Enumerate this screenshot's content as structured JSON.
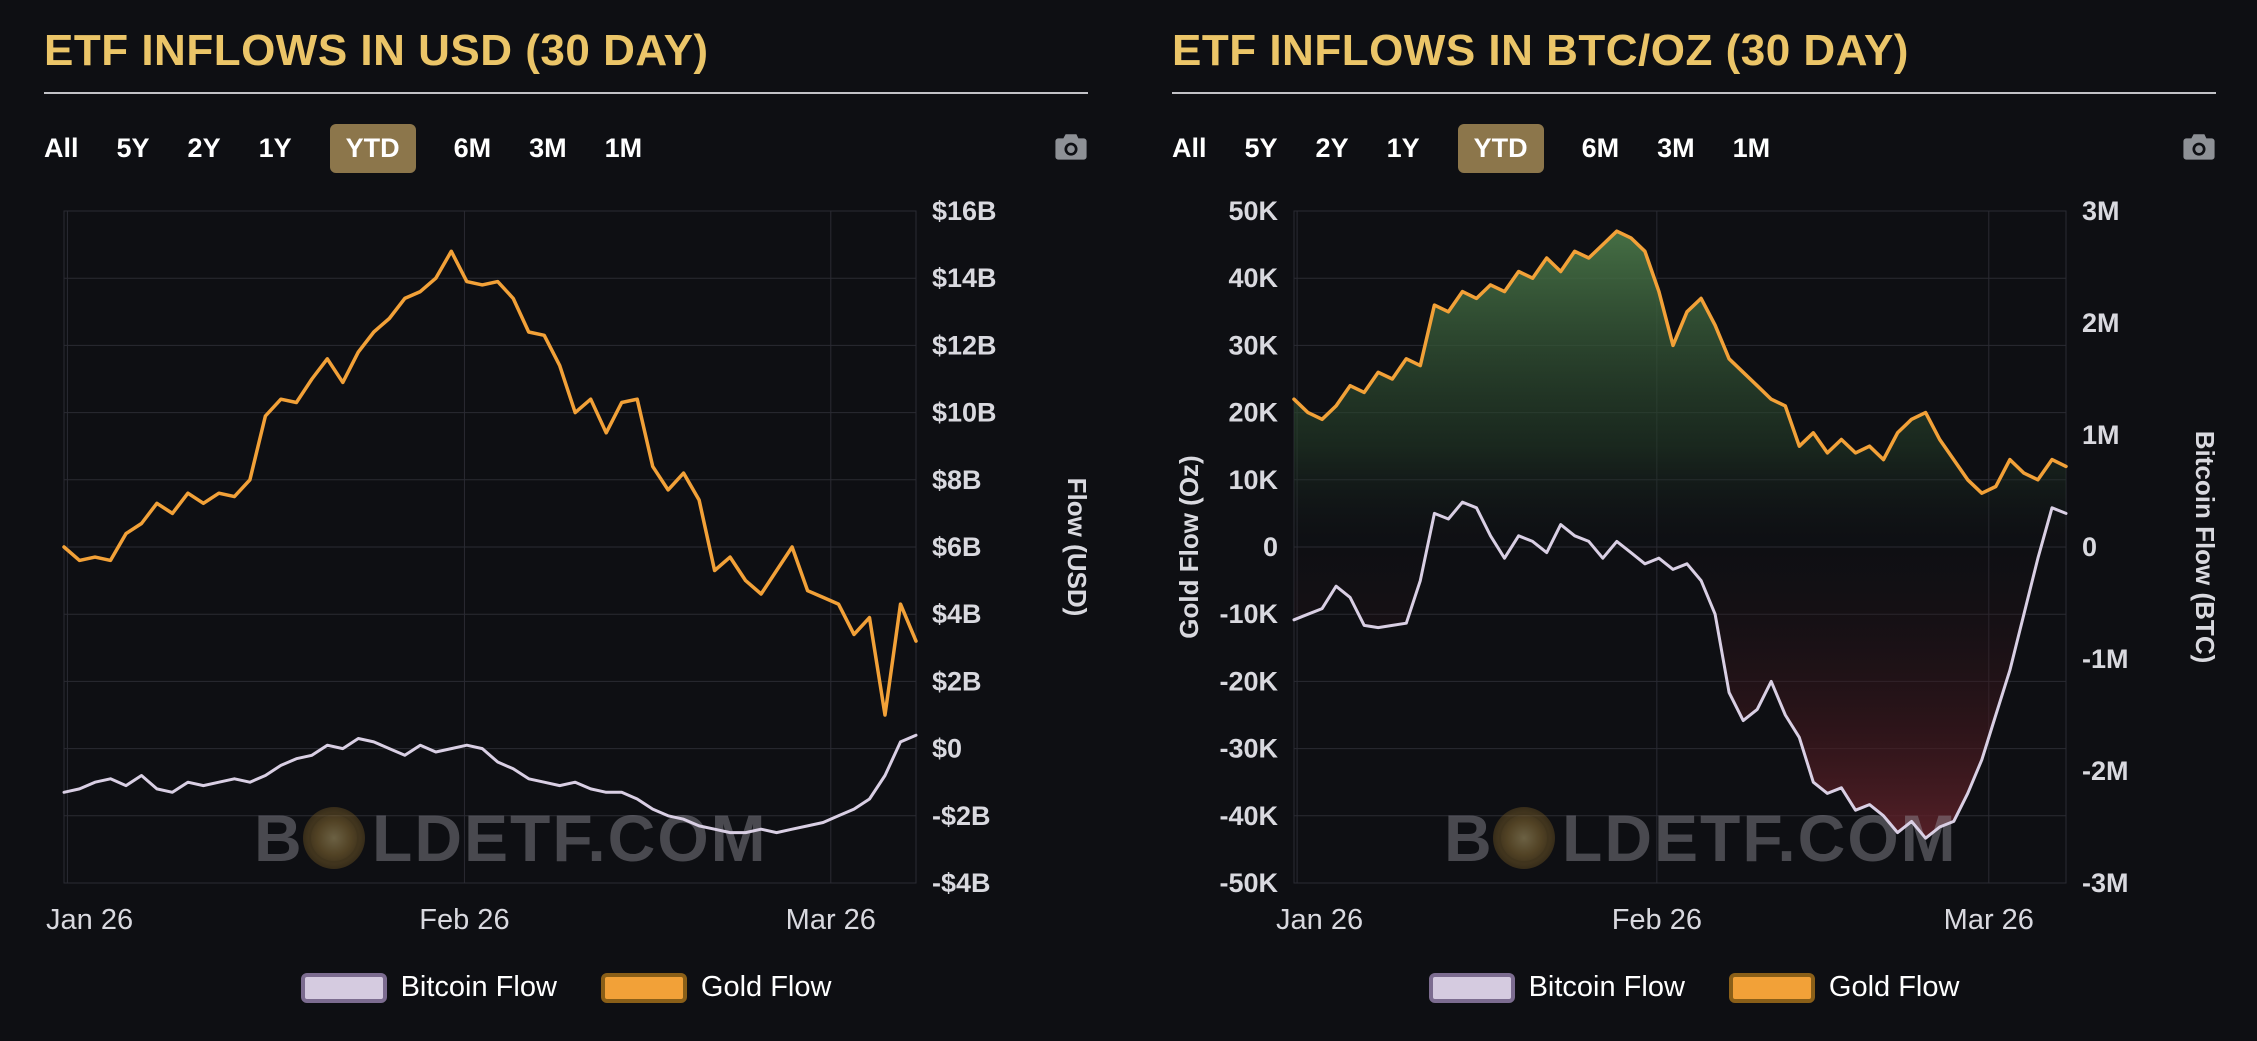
{
  "theme": {
    "bg": "#0e0f13",
    "title_color": "#ebc568",
    "grid_color": "#2a2b33",
    "axis_text": "#d9d9df",
    "selected_range_bg": "#8c764b",
    "watermark_color": "#9a9aa3",
    "green_fill": "#4e7d4c",
    "red_fill": "#6e2730",
    "gold_color": "#f2a138",
    "btc_color": "#d9cfe4"
  },
  "range_buttons": {
    "options": [
      "All",
      "5Y",
      "2Y",
      "1Y",
      "YTD",
      "6M",
      "3M",
      "1M"
    ],
    "selected": "YTD"
  },
  "watermark": {
    "text_prefix": "B",
    "text_suffix": "LDETF.COM"
  },
  "legend": [
    {
      "label": "Bitcoin Flow",
      "fill": "#d5cbe0",
      "border": "#7c6c90"
    },
    {
      "label": "Gold Flow",
      "fill": "#f2a138",
      "border": "#8a5f18"
    }
  ],
  "chart_data": [
    {
      "type": "line",
      "title": "ETF INFLOWS IN USD (30 DAY)",
      "x_ticks": [
        {
          "label": "Jan 26",
          "pos": 0.004
        },
        {
          "label": "Feb 26",
          "pos": 0.47
        },
        {
          "label": "Mar 26",
          "pos": 0.9
        }
      ],
      "right_axis": {
        "label": "Flow (USD)",
        "ylim": [
          -4,
          16
        ],
        "ticks": [
          "$16B",
          "$14B",
          "$12B",
          "$10B",
          "$8B",
          "$6B",
          "$4B",
          "$2B",
          "$0",
          "-$2B",
          "-$4B"
        ]
      },
      "series": [
        {
          "name": "Gold Flow",
          "axis": "right",
          "color": "#f2a138",
          "width": 3.5,
          "unit": "USD billions",
          "values": [
            6.0,
            5.6,
            5.7,
            5.6,
            6.4,
            6.7,
            7.3,
            7.0,
            7.6,
            7.3,
            7.6,
            7.5,
            8.0,
            9.9,
            10.4,
            10.3,
            11.0,
            11.6,
            10.9,
            11.8,
            12.4,
            12.8,
            13.4,
            13.6,
            14.0,
            14.8,
            13.9,
            13.8,
            13.9,
            13.4,
            12.4,
            12.3,
            11.4,
            10.0,
            10.4,
            9.4,
            10.3,
            10.4,
            8.4,
            7.7,
            8.2,
            7.4,
            5.3,
            5.7,
            5.0,
            4.6,
            5.3,
            6.0,
            4.7,
            4.5,
            4.3,
            3.4,
            3.9,
            1.0,
            4.3,
            3.2
          ]
        },
        {
          "name": "Bitcoin Flow",
          "axis": "right",
          "color": "#d9cfe4",
          "width": 3,
          "unit": "USD billions",
          "values": [
            -1.3,
            -1.2,
            -1.0,
            -0.9,
            -1.1,
            -0.8,
            -1.2,
            -1.3,
            -1.0,
            -1.1,
            -1.0,
            -0.9,
            -1.0,
            -0.8,
            -0.5,
            -0.3,
            -0.2,
            0.1,
            0.0,
            0.3,
            0.2,
            0.0,
            -0.2,
            0.1,
            -0.1,
            0.0,
            0.1,
            0.0,
            -0.4,
            -0.6,
            -0.9,
            -1.0,
            -1.1,
            -1.0,
            -1.2,
            -1.3,
            -1.3,
            -1.5,
            -1.8,
            -2.0,
            -2.1,
            -2.3,
            -2.4,
            -2.5,
            -2.5,
            -2.4,
            -2.5,
            -2.4,
            -2.3,
            -2.2,
            -2.0,
            -1.8,
            -1.5,
            -0.8,
            0.2,
            0.4
          ]
        }
      ]
    },
    {
      "type": "line",
      "title": "ETF INFLOWS IN BTC/OZ (30 DAY)",
      "x_ticks": [
        {
          "label": "Jan 26",
          "pos": 0.004
        },
        {
          "label": "Feb 26",
          "pos": 0.47
        },
        {
          "label": "Mar 26",
          "pos": 0.9
        }
      ],
      "left_axis": {
        "label": "Gold Flow (Oz)",
        "ylim": [
          -50,
          50
        ],
        "ticks": [
          "50K",
          "40K",
          "30K",
          "20K",
          "10K",
          "0",
          "-10K",
          "-20K",
          "-30K",
          "-40K",
          "-50K"
        ]
      },
      "right_axis": {
        "label": "Bitcoin Flow (BTC)",
        "ylim": [
          -3,
          3
        ],
        "ticks": [
          "3M",
          "2M",
          "1M",
          "0",
          "-1M",
          "-2M",
          "-3M"
        ]
      },
      "series": [
        {
          "name": "Gold Flow",
          "axis": "left",
          "color": "#f2a138",
          "width": 3.5,
          "fill": "green",
          "unit": "thousand oz",
          "values": [
            22,
            20,
            19,
            21,
            24,
            23,
            26,
            25,
            28,
            27,
            36,
            35,
            38,
            37,
            39,
            38,
            41,
            40,
            43,
            41,
            44,
            43,
            45,
            47,
            46,
            44,
            38,
            30,
            35,
            37,
            33,
            28,
            26,
            24,
            22,
            21,
            15,
            17,
            14,
            16,
            14,
            15,
            13,
            17,
            19,
            20,
            16,
            13,
            10,
            8,
            9,
            13,
            11,
            10,
            13,
            12
          ]
        },
        {
          "name": "Bitcoin Flow",
          "axis": "right",
          "color": "#d9cfe4",
          "width": 3,
          "fill": "red",
          "unit": "million BTC",
          "values": [
            -0.65,
            -0.6,
            -0.55,
            -0.35,
            -0.45,
            -0.7,
            -0.72,
            -0.7,
            -0.68,
            -0.3,
            0.3,
            0.25,
            0.4,
            0.35,
            0.1,
            -0.1,
            0.1,
            0.05,
            -0.05,
            0.2,
            0.1,
            0.05,
            -0.1,
            0.05,
            -0.05,
            -0.15,
            -0.1,
            -0.2,
            -0.15,
            -0.3,
            -0.6,
            -1.3,
            -1.55,
            -1.45,
            -1.2,
            -1.5,
            -1.7,
            -2.1,
            -2.2,
            -2.15,
            -2.35,
            -2.3,
            -2.4,
            -2.55,
            -2.45,
            -2.6,
            -2.5,
            -2.45,
            -2.2,
            -1.9,
            -1.5,
            -1.1,
            -0.6,
            -0.1,
            0.35,
            0.3
          ]
        }
      ]
    }
  ]
}
